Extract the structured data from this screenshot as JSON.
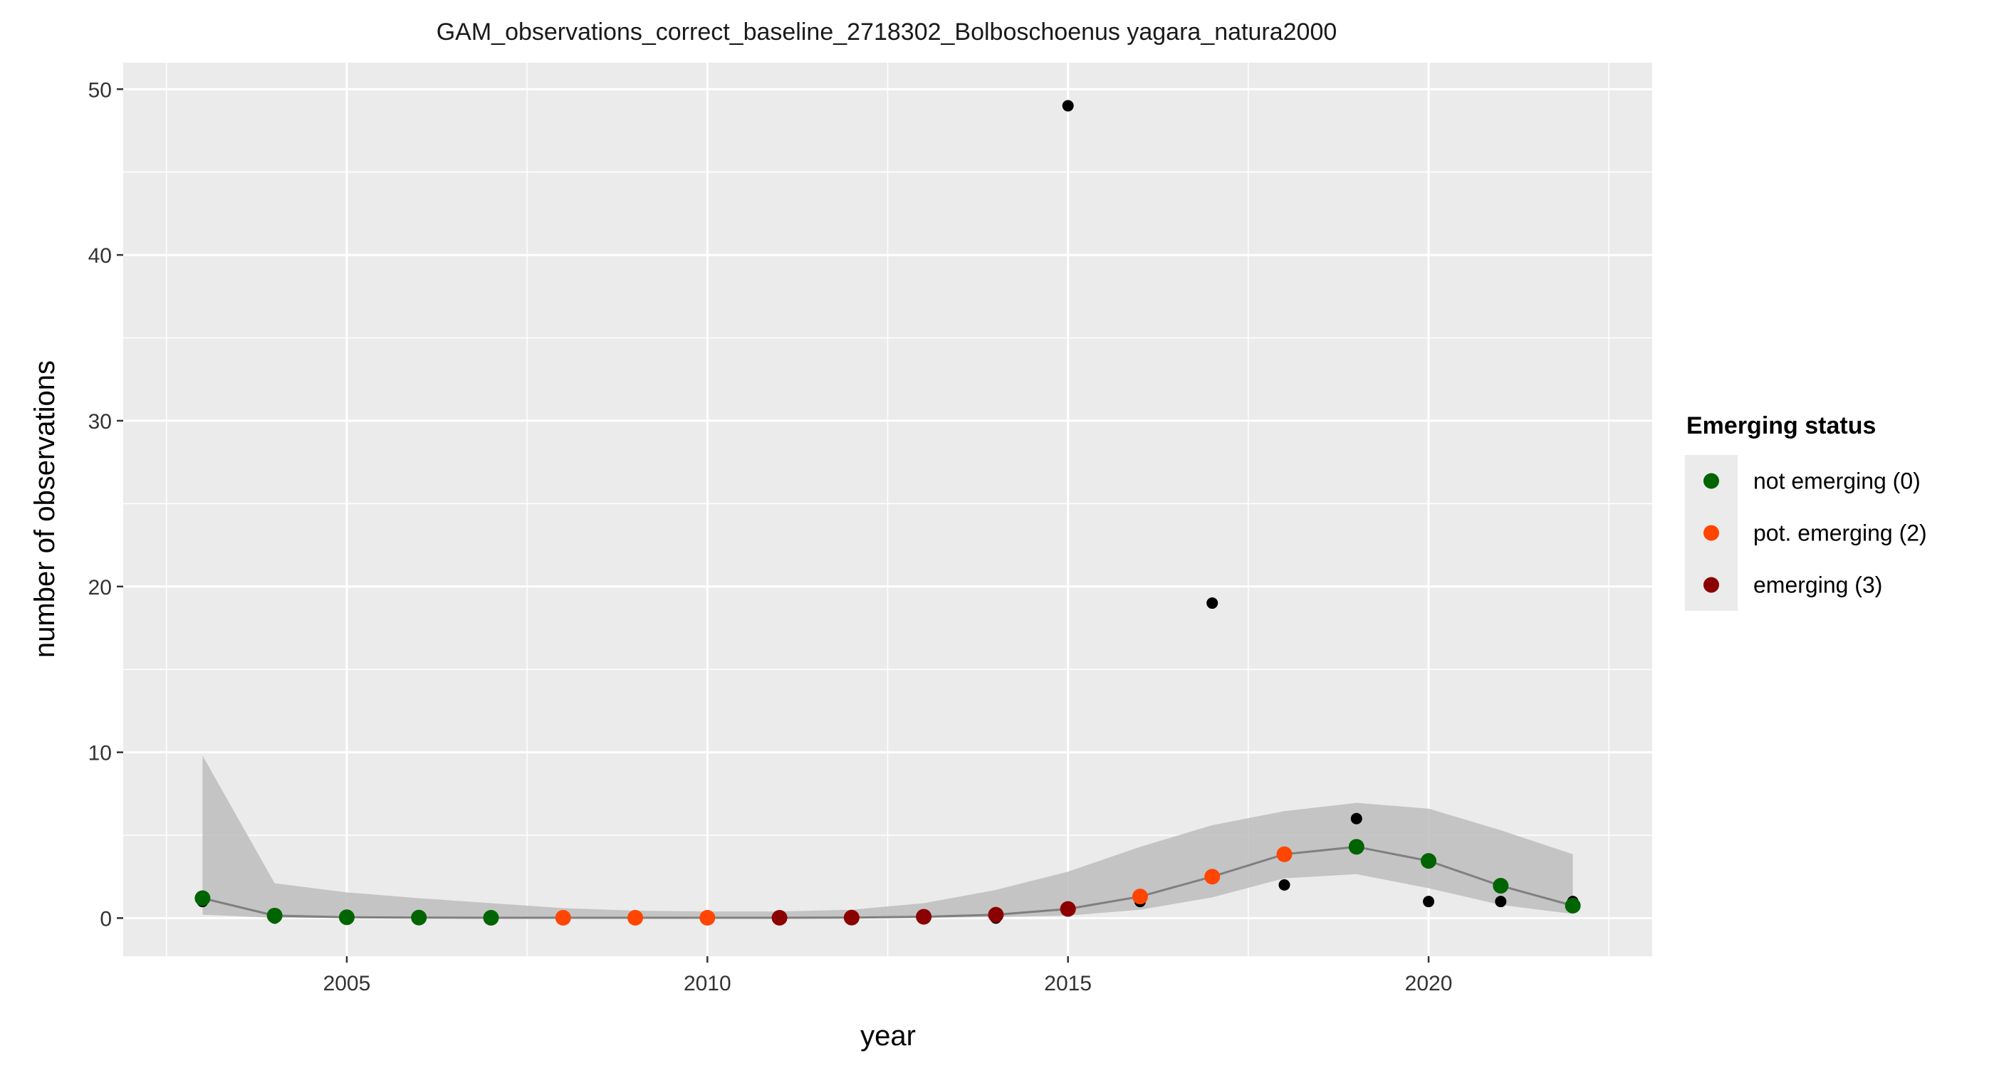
{
  "chart_data": {
    "type": "scatter",
    "title": "GAM_observations_correct_baseline_2718302_Bolboschoenus yagara_natura2000",
    "xlabel": "year",
    "ylabel": "number of observations",
    "xlim": [
      2001.9,
      2023.1
    ],
    "ylim": [
      -2.3,
      51.6
    ],
    "x_ticks": [
      2005,
      2010,
      2015,
      2020
    ],
    "x_tick_labels": [
      "2005",
      "2010",
      "2015",
      "2020"
    ],
    "y_ticks": [
      0,
      10,
      20,
      30,
      40,
      50
    ],
    "y_tick_labels": [
      "0",
      "10",
      "20",
      "30",
      "40",
      "50"
    ],
    "grid": true,
    "observed": {
      "color": "#000000",
      "x": [
        2003,
        2004,
        2014,
        2015,
        2016,
        2017,
        2018,
        2019,
        2020,
        2021,
        2022
      ],
      "y": [
        1,
        0,
        0,
        49,
        1,
        19,
        2,
        6,
        1,
        1,
        1
      ]
    },
    "fit": {
      "line_color": "#7f7f7f",
      "band_color": "#bdbdbd",
      "x": [
        2003,
        2004,
        2005,
        2006,
        2007,
        2008,
        2009,
        2010,
        2011,
        2012,
        2013,
        2014,
        2015,
        2016,
        2017,
        2018,
        2019,
        2020,
        2021,
        2022
      ],
      "y": [
        1.2,
        0.15,
        0.05,
        0.03,
        0.02,
        0.02,
        0.02,
        0.02,
        0.02,
        0.03,
        0.08,
        0.2,
        0.55,
        1.3,
        2.5,
        3.85,
        4.3,
        3.45,
        1.95,
        0.75
      ],
      "lower": [
        0.2,
        0.02,
        0.01,
        0.0,
        0.0,
        0.0,
        0.0,
        0.0,
        0.0,
        0.0,
        0.02,
        0.06,
        0.15,
        0.5,
        1.25,
        2.4,
        2.65,
        1.8,
        0.8,
        0.25
      ],
      "upper": [
        9.8,
        2.1,
        1.55,
        1.2,
        0.9,
        0.6,
        0.45,
        0.4,
        0.4,
        0.5,
        0.9,
        1.7,
        2.8,
        4.3,
        5.6,
        6.45,
        6.95,
        6.6,
        5.3,
        3.85
      ],
      "status": [
        0,
        0,
        0,
        0,
        0,
        2,
        2,
        2,
        3,
        3,
        3,
        3,
        3,
        2,
        2,
        2,
        0,
        0,
        0,
        0
      ]
    },
    "legend": {
      "title": "Emerging status",
      "placement": "right",
      "entries": [
        {
          "code": 0,
          "label": "not emerging (0)",
          "color": "#006400"
        },
        {
          "code": 2,
          "label": "pot. emerging (2)",
          "color": "#ff4500"
        },
        {
          "code": 3,
          "label": "emerging (3)",
          "color": "#8b0000"
        }
      ]
    },
    "panel_background": "#ebebeb"
  }
}
